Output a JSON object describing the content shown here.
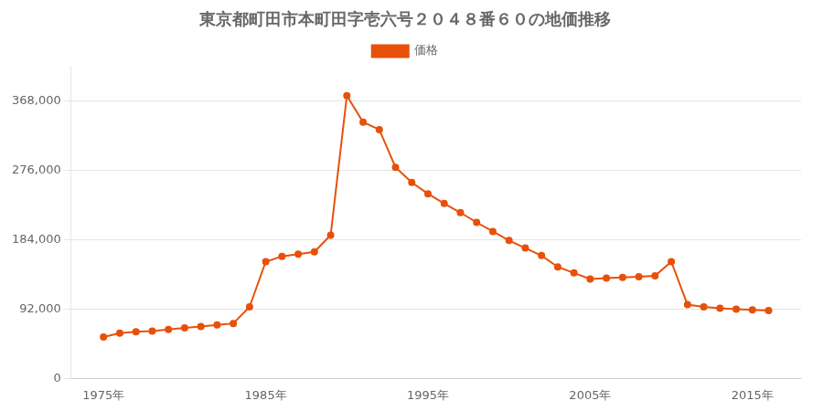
{
  "chart_data": {
    "type": "line",
    "title": "東京都町田市本町田字壱六号２０４８番６０の地価推移",
    "x": [
      1975,
      1976,
      1977,
      1978,
      1979,
      1980,
      1981,
      1982,
      1983,
      1984,
      1985,
      1986,
      1987,
      1988,
      1989,
      1990,
      1991,
      1992,
      1993,
      1994,
      1995,
      1996,
      1997,
      1998,
      1999,
      2000,
      2001,
      2002,
      2003,
      2004,
      2005,
      2006,
      2007,
      2008,
      2009,
      2010,
      2011,
      2012,
      2013,
      2014,
      2015,
      2016
    ],
    "series": [
      {
        "name": "価格",
        "color": "#e8500a",
        "marker": "circle",
        "values": [
          55000,
          60000,
          62000,
          63000,
          65000,
          67000,
          69000,
          71000,
          73000,
          95000,
          155000,
          162000,
          165000,
          168000,
          190000,
          375000,
          340000,
          330000,
          280000,
          260000,
          245000,
          232000,
          220000,
          207000,
          195000,
          183000,
          173000,
          163000,
          148000,
          140000,
          132000,
          133000,
          134000,
          135000,
          136000,
          155000,
          98000,
          95000,
          93000,
          92000,
          91000,
          90000
        ]
      }
    ],
    "xlim": [
      1973,
      2018
    ],
    "xticks": [
      {
        "value": 1975,
        "label": "1975年"
      },
      {
        "value": 1985,
        "label": "1985年"
      },
      {
        "value": 1995,
        "label": "1995年"
      },
      {
        "value": 2005,
        "label": "2005年"
      },
      {
        "value": 2015,
        "label": "2015年"
      }
    ],
    "ylim": [
      0,
      414000
    ],
    "yticks": [
      0,
      {
        "value": 92000,
        "label": "92,000"
      },
      {
        "value": 184000,
        "label": "184,000"
      },
      {
        "value": 276000,
        "label": "276,000"
      },
      {
        "value": 368000,
        "label": "368,000"
      }
    ],
    "grid": "y",
    "legend": "top"
  }
}
